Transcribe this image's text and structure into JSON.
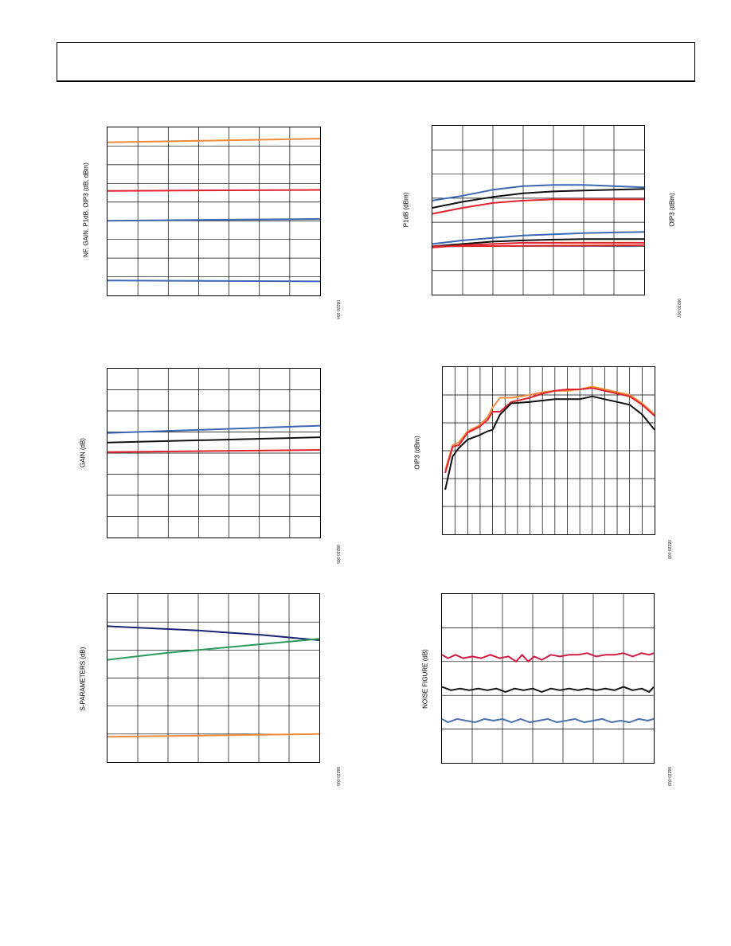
{
  "charts": [
    {
      "id": "c1",
      "ylabel": "NF, GAIN, P1dB, OIP3 (dB, dBm)",
      "ylabel2": "",
      "figid": "08220-004",
      "nx": 7,
      "ny": 9
    },
    {
      "id": "c2",
      "ylabel": "P1dB (dBm)",
      "ylabel2": "OIP3 (dBm)",
      "figid": "08220-007",
      "nx": 7,
      "ny": 7
    },
    {
      "id": "c3",
      "ylabel": "GAIN (dB)",
      "ylabel2": "",
      "figid": "08220-005",
      "nx": 7,
      "ny": 8
    },
    {
      "id": "c4",
      "ylabel": "OIP3 (dBm)",
      "ylabel2": "",
      "figid": "08220-008",
      "nx": 17,
      "ny": 6
    },
    {
      "id": "c5",
      "ylabel": "S-PARAMETERS (dB)",
      "ylabel2": "",
      "figid": "08220-006",
      "nx": 7,
      "ny": 6
    },
    {
      "id": "c6",
      "ylabel": "NOISE FIGURE (dB)",
      "ylabel2": "",
      "figid": "08220-009",
      "nx": 7,
      "ny": 5
    }
  ],
  "colors": {
    "orange": "#f08a3c",
    "red": "#e0222c",
    "blue": "#3d67b3",
    "black": "#111111",
    "navy": "#1a2473",
    "green": "#2a9a5c",
    "crimson": "#d11a44",
    "steel": "#4a72b0"
  },
  "chart_data": [
    {
      "type": "line",
      "title": "",
      "xlabel": "",
      "ylabel": "NF, GAIN, P1dB, OIP3 (dB, dBm)",
      "xlim": [
        0,
        7
      ],
      "ylim": [
        0,
        9
      ],
      "grid": true,
      "series": [
        {
          "color": "orange",
          "x": [
            0,
            7
          ],
          "y": [
            8.2,
            8.4
          ]
        },
        {
          "color": "red",
          "x": [
            0,
            7
          ],
          "y": [
            5.6,
            5.65
          ]
        },
        {
          "color": "blue",
          "x": [
            0,
            7
          ],
          "y": [
            4.0,
            4.1
          ]
        },
        {
          "color": "blue",
          "x": [
            0,
            7
          ],
          "y": [
            0.8,
            0.75
          ]
        }
      ]
    },
    {
      "type": "line",
      "title": "",
      "xlabel": "",
      "ylabel": "P1dB (dBm)",
      "xlim": [
        0,
        7
      ],
      "ylim": [
        0,
        7
      ],
      "grid": true,
      "series": [
        {
          "color": "blue",
          "x": [
            0,
            1,
            2,
            3,
            4,
            5,
            6,
            7
          ],
          "y": [
            3.9,
            4.1,
            4.35,
            4.5,
            4.55,
            4.55,
            4.5,
            4.45
          ]
        },
        {
          "color": "black",
          "x": [
            0,
            1,
            2,
            3,
            4,
            5,
            6,
            7
          ],
          "y": [
            3.6,
            3.85,
            4.05,
            4.2,
            4.28,
            4.32,
            4.35,
            4.38
          ]
        },
        {
          "color": "red",
          "x": [
            0,
            1,
            2,
            3,
            4,
            5,
            6,
            7
          ],
          "y": [
            3.35,
            3.6,
            3.8,
            3.9,
            3.95,
            3.95,
            3.95,
            3.95
          ]
        },
        {
          "color": "blue",
          "x": [
            0,
            1,
            2,
            3,
            4,
            5,
            6,
            7
          ],
          "y": [
            2.1,
            2.25,
            2.35,
            2.45,
            2.5,
            2.55,
            2.58,
            2.6
          ]
        },
        {
          "color": "black",
          "x": [
            0,
            1,
            2,
            3,
            4,
            5,
            6,
            7
          ],
          "y": [
            2.0,
            2.1,
            2.2,
            2.25,
            2.28,
            2.3,
            2.3,
            2.3
          ]
        },
        {
          "color": "red",
          "x": [
            0,
            1,
            2,
            3,
            4,
            5,
            6,
            7
          ],
          "y": [
            1.95,
            2.05,
            2.1,
            2.15,
            2.15,
            2.15,
            2.15,
            2.15
          ]
        },
        {
          "color": "red",
          "x": [
            0,
            7
          ],
          "y": [
            2.0,
            2.05
          ]
        }
      ]
    },
    {
      "type": "line",
      "title": "",
      "xlabel": "",
      "ylabel": "GAIN (dB)",
      "xlim": [
        0,
        7
      ],
      "ylim": [
        0,
        8
      ],
      "grid": true,
      "series": [
        {
          "color": "blue",
          "x": [
            0,
            7
          ],
          "y": [
            4.95,
            5.3
          ]
        },
        {
          "color": "black",
          "x": [
            0,
            7
          ],
          "y": [
            4.5,
            4.75
          ]
        },
        {
          "color": "red",
          "x": [
            0,
            7
          ],
          "y": [
            4.05,
            4.15
          ]
        }
      ]
    },
    {
      "type": "line",
      "title": "",
      "xlabel": "",
      "ylabel": "OIP3 (dBm)",
      "xlim": [
        0,
        17
      ],
      "ylim": [
        0,
        6
      ],
      "grid": true,
      "series": [
        {
          "color": "orange",
          "x": [
            0.2,
            0.8,
            1.3,
            2.0,
            2.9,
            3.6,
            4.0,
            4.6,
            5.5,
            7,
            8,
            9,
            10,
            11,
            12,
            13,
            14,
            15,
            16,
            17
          ],
          "y": [
            2.3,
            3.2,
            3.3,
            3.7,
            3.9,
            4.2,
            4.55,
            4.9,
            4.9,
            5.0,
            5.1,
            5.15,
            5.15,
            5.2,
            5.3,
            5.2,
            5.1,
            5.0,
            4.7,
            4.3
          ]
        },
        {
          "color": "red",
          "x": [
            0.2,
            0.8,
            1.3,
            2.0,
            2.9,
            3.6,
            4.0,
            4.6,
            5.5,
            7,
            8,
            9,
            10,
            11,
            12,
            13,
            14,
            15,
            16,
            17
          ],
          "y": [
            2.2,
            3.15,
            3.2,
            3.65,
            3.85,
            4.1,
            4.4,
            4.4,
            4.75,
            4.9,
            5.05,
            5.15,
            5.2,
            5.2,
            5.25,
            5.15,
            5.05,
            4.95,
            4.65,
            4.25
          ]
        },
        {
          "color": "black",
          "x": [
            0.2,
            0.8,
            1.3,
            2.0,
            2.9,
            3.6,
            4.0,
            4.6,
            5.5,
            7,
            8,
            9,
            10,
            11,
            12,
            13,
            14,
            15,
            16,
            17
          ],
          "y": [
            1.6,
            2.8,
            3.1,
            3.4,
            3.55,
            3.7,
            3.75,
            4.3,
            4.7,
            4.75,
            4.8,
            4.85,
            4.85,
            4.85,
            4.95,
            4.85,
            4.75,
            4.65,
            4.3,
            3.75
          ]
        }
      ]
    },
    {
      "type": "line",
      "title": "",
      "xlabel": "",
      "ylabel": "S-PARAMETERS (dB)",
      "xlim": [
        0,
        7
      ],
      "ylim": [
        0,
        6
      ],
      "grid": true,
      "series": [
        {
          "color": "navy",
          "x": [
            0,
            1,
            2,
            3,
            4,
            5,
            6,
            7
          ],
          "y": [
            4.85,
            4.8,
            4.75,
            4.7,
            4.62,
            4.55,
            4.45,
            4.35
          ]
        },
        {
          "color": "green",
          "x": [
            0,
            1,
            2,
            3,
            4,
            5,
            6,
            7
          ],
          "y": [
            3.65,
            3.78,
            3.9,
            4.0,
            4.1,
            4.2,
            4.3,
            4.4
          ]
        },
        {
          "color": "orange",
          "x": [
            0,
            7
          ],
          "y": [
            0.9,
            1.0
          ]
        }
      ]
    },
    {
      "type": "line",
      "title": "",
      "xlabel": "",
      "ylabel": "NOISE FIGURE (dB)",
      "xlim": [
        0,
        7
      ],
      "ylim": [
        0,
        5
      ],
      "grid": true,
      "series": [
        {
          "color": "crimson",
          "x": [
            0,
            0.2,
            0.45,
            0.7,
            1.0,
            1.3,
            1.6,
            1.9,
            2.2,
            2.45,
            2.65,
            2.85,
            3.05,
            3.3,
            3.6,
            3.9,
            4.2,
            4.5,
            4.8,
            5.1,
            5.4,
            5.7,
            6.0,
            6.3,
            6.6,
            6.85,
            7
          ],
          "y": [
            3.2,
            3.1,
            3.2,
            3.1,
            3.15,
            3.1,
            3.2,
            3.1,
            3.15,
            3.0,
            3.2,
            3.0,
            3.15,
            3.05,
            3.2,
            3.15,
            3.2,
            3.2,
            3.25,
            3.15,
            3.2,
            3.2,
            3.25,
            3.15,
            3.25,
            3.2,
            3.25
          ]
        },
        {
          "color": "black",
          "x": [
            0,
            0.3,
            0.6,
            0.9,
            1.2,
            1.5,
            1.8,
            2.1,
            2.4,
            2.7,
            3.0,
            3.3,
            3.6,
            3.9,
            4.2,
            4.5,
            4.8,
            5.1,
            5.4,
            5.7,
            6.0,
            6.3,
            6.6,
            6.85,
            7
          ],
          "y": [
            2.25,
            2.15,
            2.2,
            2.15,
            2.2,
            2.15,
            2.2,
            2.1,
            2.2,
            2.15,
            2.2,
            2.1,
            2.2,
            2.15,
            2.2,
            2.15,
            2.2,
            2.15,
            2.2,
            2.15,
            2.25,
            2.15,
            2.2,
            2.1,
            2.25
          ]
        },
        {
          "color": "steel",
          "x": [
            0,
            0.2,
            0.5,
            0.8,
            1.1,
            1.4,
            1.7,
            2.0,
            2.3,
            2.6,
            2.9,
            3.2,
            3.5,
            3.8,
            4.1,
            4.4,
            4.7,
            5.0,
            5.3,
            5.6,
            5.9,
            6.2,
            6.5,
            6.8,
            7
          ],
          "y": [
            1.3,
            1.2,
            1.3,
            1.25,
            1.2,
            1.3,
            1.25,
            1.3,
            1.2,
            1.3,
            1.2,
            1.25,
            1.3,
            1.2,
            1.25,
            1.3,
            1.2,
            1.25,
            1.3,
            1.2,
            1.25,
            1.2,
            1.3,
            1.25,
            1.3
          ]
        }
      ]
    }
  ]
}
